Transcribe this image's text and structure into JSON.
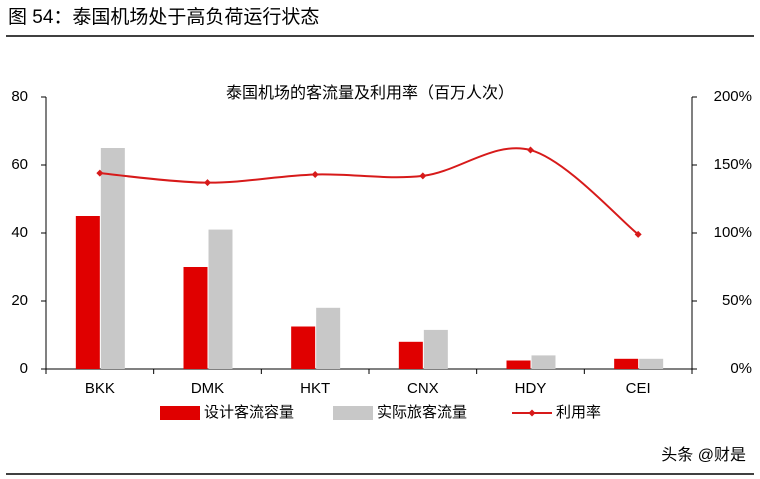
{
  "header": {
    "title": "图 54：泰国机场处于高负荷运行状态"
  },
  "chart_data": {
    "type": "bar",
    "title": "泰国机场的客流量及利用率（百万人次）",
    "categories": [
      "BKK",
      "DMK",
      "HKT",
      "CNX",
      "HDY",
      "CEI"
    ],
    "series": [
      {
        "name": "设计客流容量",
        "type": "bar",
        "color": "#e00000",
        "values": [
          45,
          30,
          12.5,
          8,
          2.5,
          3
        ]
      },
      {
        "name": "实际旅客流量",
        "type": "bar",
        "color": "#c8c8c8",
        "values": [
          65,
          41,
          18,
          11.5,
          4,
          3
        ]
      },
      {
        "name": "利用率",
        "type": "line",
        "axis": "y2",
        "color": "#d71a1a",
        "values": [
          144,
          137,
          143,
          142,
          161,
          99
        ]
      }
    ],
    "ylim": [
      0,
      80
    ],
    "yticks": [
      0,
      20,
      40,
      60,
      80
    ],
    "y2lim": [
      0,
      200
    ],
    "y2ticks": [
      {
        "value": 0,
        "label": "0%"
      },
      {
        "value": 50,
        "label": "50%"
      },
      {
        "value": 100,
        "label": "100%"
      },
      {
        "value": 150,
        "label": "150%"
      },
      {
        "value": 200,
        "label": "200%"
      }
    ],
    "legend": "bottom",
    "grid": false
  },
  "watermark": "头条 @财是"
}
